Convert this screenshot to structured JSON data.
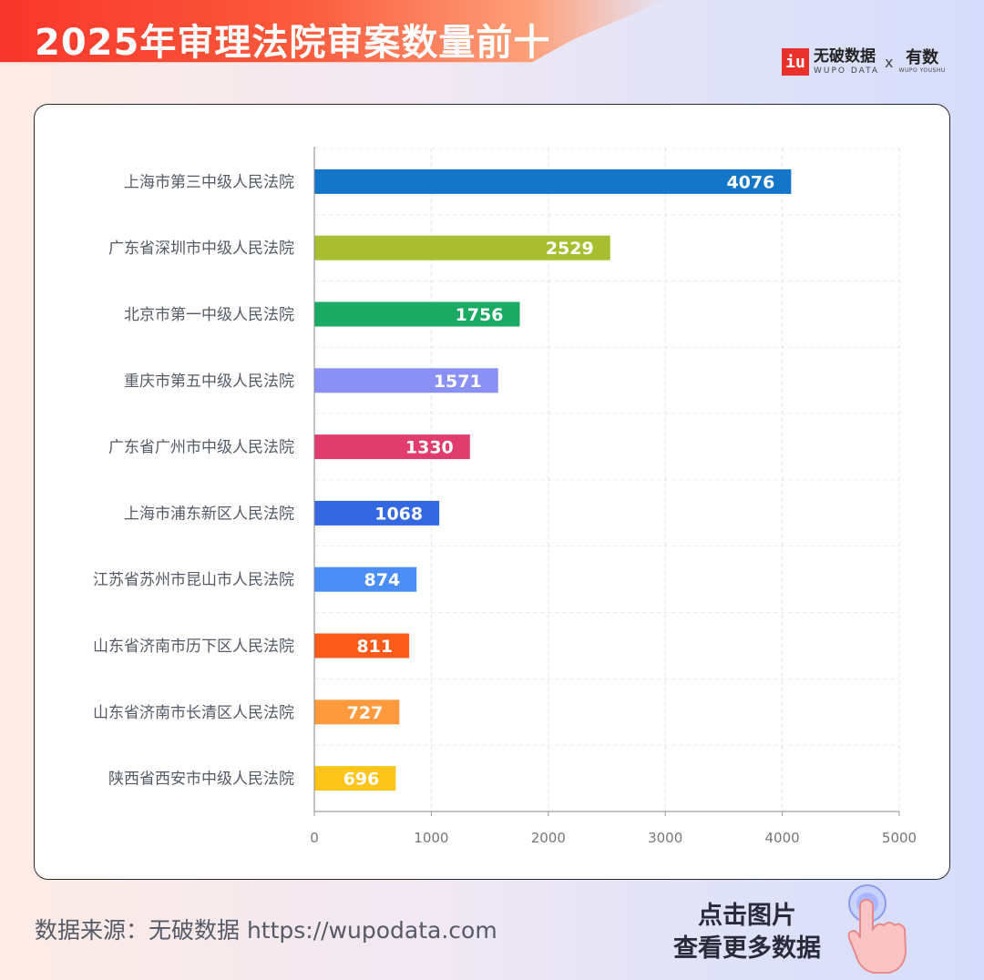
{
  "header": {
    "title": "2025年审理法院审案数量前十",
    "logo": {
      "mark": "iu",
      "name": "无破数据",
      "name_en": "WUPO DATA",
      "separator": "x",
      "partner": "有数",
      "partner_en": "WUPO YOUSHU"
    }
  },
  "chart_data": {
    "type": "bar",
    "orientation": "horizontal",
    "title": "2025年审理法院审案数量前十",
    "categories": [
      "上海市第三中级人民法院",
      "广东省深圳市中级人民法院",
      "北京市第一中级人民法院",
      "重庆市第五中级人民法院",
      "广东省广州市中级人民法院",
      "上海市浦东新区人民法院",
      "江苏省苏州市昆山市人民法院",
      "山东省济南市历下区人民法院",
      "山东省济南市长清区人民法院",
      "陕西省西安市中级人民法院"
    ],
    "values": [
      4076,
      2529,
      1756,
      1571,
      1330,
      1068,
      874,
      811,
      727,
      696
    ],
    "colors": [
      "#1476c8",
      "#a8bd2f",
      "#1aaa63",
      "#8a90f5",
      "#e03c6e",
      "#3567e0",
      "#4a8df7",
      "#fa5a1a",
      "#fd9a3e",
      "#fdc51a"
    ],
    "xlim": [
      0,
      5000
    ],
    "xticks": [
      0,
      1000,
      2000,
      3000,
      4000,
      5000
    ],
    "grid": true,
    "data_labels": true
  },
  "footer": {
    "source": "数据来源：无破数据 https://wupodata.com",
    "cta_line1": "点击图片",
    "cta_line2": "查看更多数据",
    "cta_icon": "pointing-hand-icon"
  }
}
